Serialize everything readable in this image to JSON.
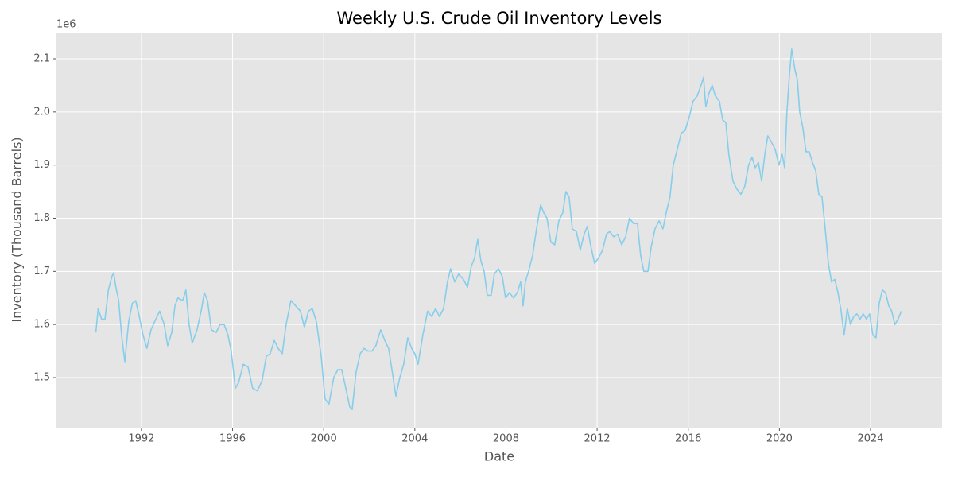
{
  "chart_data": {
    "type": "line",
    "title": "Weekly U.S. Crude Oil Inventory Levels",
    "x_label": "Date",
    "y_label": "Inventory (Thousand Barrels)",
    "y_offset_label": "1e6",
    "grid": true,
    "xlim": [
      1988.27,
      2027.14
    ],
    "xticks": [
      1992,
      1996,
      2000,
      2004,
      2008,
      2012,
      2016,
      2020,
      2024
    ],
    "ylim": [
      1405700,
      2149400
    ],
    "yticks": [
      {
        "value": 1500000,
        "label": "1.5"
      },
      {
        "value": 1600000,
        "label": "1.6"
      },
      {
        "value": 1700000,
        "label": "1.7"
      },
      {
        "value": 1800000,
        "label": "1.8"
      },
      {
        "value": 1900000,
        "label": "1.9"
      },
      {
        "value": 2000000,
        "label": "2.0"
      },
      {
        "value": 2100000,
        "label": "2.1"
      }
    ],
    "x": [
      1990.0,
      1990.1,
      1990.25,
      1990.4,
      1990.55,
      1990.7,
      1990.78,
      1990.88,
      1991.0,
      1991.13,
      1991.27,
      1991.44,
      1991.6,
      1991.75,
      1991.93,
      1992.07,
      1992.24,
      1992.42,
      1992.63,
      1992.8,
      1993.0,
      1993.15,
      1993.33,
      1993.47,
      1993.6,
      1993.81,
      1993.95,
      1994.09,
      1994.23,
      1994.44,
      1994.62,
      1994.76,
      1994.9,
      1995.07,
      1995.28,
      1995.45,
      1995.63,
      1995.8,
      1995.94,
      1996.12,
      1996.26,
      1996.47,
      1996.68,
      1996.88,
      1997.09,
      1997.3,
      1997.48,
      1997.65,
      1997.83,
      1998.0,
      1998.18,
      1998.35,
      1998.56,
      1998.77,
      1998.98,
      1999.15,
      1999.33,
      1999.5,
      1999.68,
      1999.89,
      2000.06,
      2000.23,
      2000.44,
      2000.62,
      2000.79,
      2000.97,
      2001.14,
      2001.25,
      2001.42,
      2001.6,
      2001.77,
      2001.94,
      2002.12,
      2002.29,
      2002.5,
      2002.68,
      2002.85,
      2003.03,
      2003.17,
      2003.34,
      2003.51,
      2003.69,
      2003.86,
      2004.0,
      2004.14,
      2004.35,
      2004.56,
      2004.74,
      2004.91,
      2005.08,
      2005.26,
      2005.43,
      2005.57,
      2005.75,
      2005.92,
      2006.13,
      2006.31,
      2006.48,
      2006.62,
      2006.76,
      2006.9,
      2007.04,
      2007.18,
      2007.35,
      2007.49,
      2007.67,
      2007.84,
      2007.98,
      2008.15,
      2008.33,
      2008.5,
      2008.64,
      2008.75,
      2008.85,
      2008.99,
      2009.17,
      2009.34,
      2009.52,
      2009.66,
      2009.8,
      2009.97,
      2010.14,
      2010.32,
      2010.49,
      2010.63,
      2010.77,
      2010.91,
      2011.09,
      2011.26,
      2011.43,
      2011.57,
      2011.71,
      2011.89,
      2012.06,
      2012.24,
      2012.41,
      2012.55,
      2012.73,
      2012.9,
      2013.08,
      2013.25,
      2013.42,
      2013.6,
      2013.77,
      2013.91,
      2014.05,
      2014.23,
      2014.37,
      2014.54,
      2014.72,
      2014.89,
      2015.03,
      2015.2,
      2015.34,
      2015.52,
      2015.69,
      2015.86,
      2016.04,
      2016.21,
      2016.39,
      2016.56,
      2016.67,
      2016.77,
      2016.91,
      2017.05,
      2017.19,
      2017.37,
      2017.51,
      2017.65,
      2017.78,
      2017.96,
      2018.13,
      2018.31,
      2018.48,
      2018.65,
      2018.8,
      2018.94,
      2019.08,
      2019.22,
      2019.36,
      2019.49,
      2019.63,
      2019.81,
      2019.98,
      2020.12,
      2020.23,
      2020.33,
      2020.44,
      2020.54,
      2020.68,
      2020.79,
      2020.89,
      2021.03,
      2021.17,
      2021.31,
      2021.45,
      2021.59,
      2021.73,
      2021.87,
      2022.01,
      2022.15,
      2022.29,
      2022.43,
      2022.57,
      2022.71,
      2022.84,
      2022.98,
      2023.12,
      2023.26,
      2023.4,
      2023.54,
      2023.68,
      2023.82,
      2023.96,
      2024.1,
      2024.24,
      2024.38,
      2024.52,
      2024.66,
      2024.8,
      2024.93,
      2025.07,
      2025.21,
      2025.35
    ],
    "series": [
      {
        "color": "#87ceeb",
        "values": [
          1585000,
          1630000,
          1610000,
          1610000,
          1665000,
          1690000,
          1697000,
          1670000,
          1645000,
          1580000,
          1530000,
          1605000,
          1640000,
          1645000,
          1610000,
          1580000,
          1555000,
          1590000,
          1610000,
          1625000,
          1600000,
          1560000,
          1585000,
          1635000,
          1650000,
          1645000,
          1665000,
          1600000,
          1565000,
          1590000,
          1625000,
          1660000,
          1645000,
          1590000,
          1585000,
          1600000,
          1600000,
          1580000,
          1550000,
          1480000,
          1490000,
          1525000,
          1520000,
          1480000,
          1475000,
          1495000,
          1540000,
          1545000,
          1570000,
          1555000,
          1545000,
          1600000,
          1645000,
          1635000,
          1625000,
          1595000,
          1625000,
          1630000,
          1605000,
          1540000,
          1460000,
          1450000,
          1500000,
          1515000,
          1515000,
          1480000,
          1445000,
          1440000,
          1510000,
          1545000,
          1555000,
          1550000,
          1550000,
          1560000,
          1590000,
          1570000,
          1555000,
          1505000,
          1465000,
          1500000,
          1525000,
          1575000,
          1555000,
          1545000,
          1525000,
          1580000,
          1625000,
          1615000,
          1630000,
          1615000,
          1630000,
          1680000,
          1705000,
          1680000,
          1695000,
          1685000,
          1670000,
          1710000,
          1725000,
          1760000,
          1720000,
          1700000,
          1655000,
          1655000,
          1695000,
          1705000,
          1690000,
          1650000,
          1660000,
          1650000,
          1660000,
          1680000,
          1635000,
          1680000,
          1700000,
          1730000,
          1780000,
          1825000,
          1810000,
          1800000,
          1755000,
          1750000,
          1795000,
          1810000,
          1850000,
          1840000,
          1780000,
          1775000,
          1740000,
          1770000,
          1785000,
          1750000,
          1715000,
          1725000,
          1740000,
          1770000,
          1775000,
          1765000,
          1770000,
          1750000,
          1765000,
          1800000,
          1790000,
          1790000,
          1730000,
          1700000,
          1700000,
          1745000,
          1780000,
          1795000,
          1780000,
          1810000,
          1840000,
          1900000,
          1930000,
          1960000,
          1965000,
          1990000,
          2020000,
          2030000,
          2050000,
          2065000,
          2010000,
          2035000,
          2050000,
          2030000,
          2020000,
          1985000,
          1980000,
          1920000,
          1870000,
          1855000,
          1845000,
          1860000,
          1900000,
          1915000,
          1895000,
          1905000,
          1870000,
          1920000,
          1955000,
          1945000,
          1930000,
          1900000,
          1920000,
          1895000,
          2000000,
          2070000,
          2118000,
          2080000,
          2060000,
          2000000,
          1970000,
          1925000,
          1925000,
          1905000,
          1890000,
          1845000,
          1840000,
          1780000,
          1715000,
          1680000,
          1685000,
          1660000,
          1625000,
          1580000,
          1630000,
          1600000,
          1615000,
          1620000,
          1610000,
          1620000,
          1610000,
          1620000,
          1580000,
          1575000,
          1640000,
          1665000,
          1660000,
          1635000,
          1625000,
          1600000,
          1610000,
          1625000
        ]
      }
    ]
  }
}
